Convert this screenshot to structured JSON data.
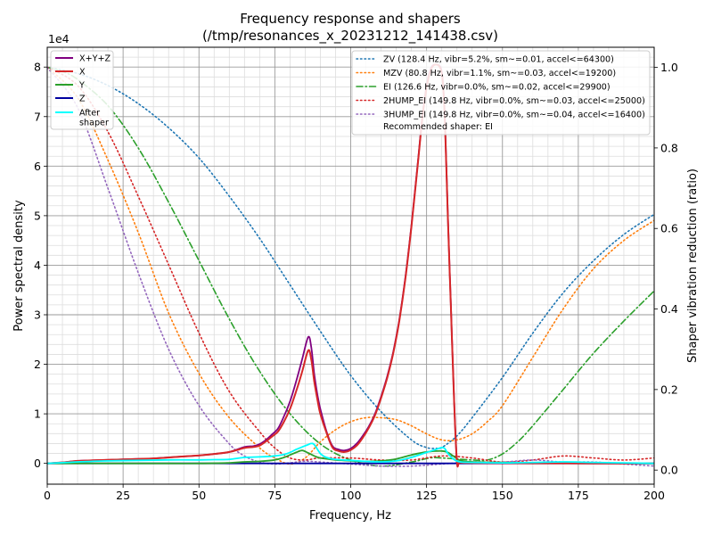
{
  "chart_data": {
    "type": "line",
    "title": "Frequency response and shapers",
    "subtitle": "(/tmp/resonances_x_20231212_141438.csv)",
    "xlabel": "Frequency, Hz",
    "ylabel": "Power spectral density",
    "y2label": "Shaper vibration reduction (ratio)",
    "xlim": [
      0,
      200
    ],
    "ylim": [
      -4200,
      84000
    ],
    "y2lim": [
      -0.035,
      1.05
    ],
    "y_offset_label": "1e4",
    "grid": true,
    "x_ticks": [
      0,
      25,
      50,
      75,
      100,
      125,
      150,
      175,
      200
    ],
    "y_ticks": [
      0,
      10000,
      20000,
      30000,
      40000,
      50000,
      60000,
      70000,
      80000
    ],
    "y_tick_labels": [
      "0",
      "1",
      "2",
      "3",
      "4",
      "5",
      "6",
      "7",
      "8"
    ],
    "y2_ticks": [
      0.0,
      0.2,
      0.4,
      0.6,
      0.8,
      1.0
    ],
    "y2_tick_labels": [
      "0.0",
      "0.2",
      "0.4",
      "0.6",
      "0.8",
      "1.0"
    ],
    "legend_left_position": "top-left",
    "legend_right_position": "top-right",
    "recommended_label": "Recommended shaper: EI",
    "psd_series": [
      {
        "name": "X+Y+Z",
        "label": "X+Y+Z",
        "color": "#800080",
        "x": [
          0,
          5,
          10,
          15,
          20,
          25,
          30,
          35,
          40,
          45,
          50,
          55,
          60,
          65,
          68,
          70,
          72,
          74,
          76,
          78,
          80,
          82,
          84,
          86,
          87,
          88,
          89,
          90,
          92,
          94,
          96,
          98,
          100,
          102,
          104,
          106,
          108,
          110,
          112,
          114,
          116,
          118,
          120,
          122,
          124,
          126,
          128,
          130,
          131,
          132,
          133,
          134,
          135,
          136,
          140,
          150,
          160,
          170,
          180,
          190,
          200
        ],
        "y": [
          0,
          200,
          500,
          600,
          700,
          800,
          900,
          1000,
          1200,
          1400,
          1600,
          1900,
          2300,
          3300,
          3500,
          3900,
          4700,
          5800,
          7000,
          9500,
          12500,
          16500,
          21000,
          25500,
          23500,
          18000,
          14000,
          11000,
          6500,
          3500,
          2800,
          2600,
          3000,
          4000,
          5600,
          7500,
          10000,
          13500,
          17500,
          22500,
          29000,
          37500,
          48000,
          60000,
          72000,
          79000,
          80500,
          79000,
          70000,
          50000,
          32000,
          14000,
          500,
          200,
          100,
          50,
          30,
          20,
          0,
          0,
          0
        ]
      },
      {
        "name": "X",
        "label": "X",
        "color": "#d62728",
        "x": [
          0,
          5,
          10,
          15,
          20,
          25,
          30,
          35,
          40,
          45,
          50,
          55,
          60,
          65,
          68,
          70,
          72,
          74,
          76,
          78,
          80,
          82,
          84,
          86,
          87,
          88,
          89,
          90,
          92,
          94,
          96,
          98,
          100,
          102,
          104,
          106,
          108,
          110,
          112,
          114,
          116,
          118,
          120,
          122,
          124,
          126,
          128,
          130,
          131,
          132,
          133,
          134,
          135,
          136,
          140,
          150,
          160,
          170,
          180,
          190,
          200
        ],
        "y": [
          0,
          200,
          500,
          600,
          700,
          800,
          900,
          1000,
          1200,
          1400,
          1600,
          1900,
          2300,
          3100,
          3300,
          3600,
          4400,
          5400,
          6400,
          8400,
          11000,
          14500,
          18500,
          22800,
          21000,
          16500,
          13000,
          10000,
          6200,
          3200,
          2500,
          2300,
          2700,
          3600,
          5200,
          7200,
          9700,
          13200,
          17200,
          22200,
          28700,
          37200,
          47700,
          59700,
          71700,
          78700,
          80500,
          78700,
          69700,
          49700,
          31700,
          13700,
          400,
          150,
          80,
          40,
          20,
          10,
          0,
          0,
          0
        ]
      },
      {
        "name": "Y",
        "label": "Y",
        "color": "#2ca02c",
        "x": [
          0,
          10,
          20,
          30,
          40,
          50,
          60,
          65,
          70,
          75,
          78,
          80,
          82,
          84,
          86,
          88,
          90,
          95,
          100,
          105,
          110,
          115,
          120,
          125,
          130,
          132,
          134,
          136,
          140,
          150,
          160,
          170,
          180,
          200
        ],
        "y": [
          0,
          0,
          0,
          0,
          0,
          0,
          100,
          300,
          400,
          700,
          1200,
          1700,
          2200,
          2600,
          2100,
          1500,
          1100,
          700,
          500,
          400,
          500,
          900,
          1700,
          2300,
          2500,
          2200,
          1400,
          600,
          300,
          150,
          80,
          40,
          20,
          0
        ]
      },
      {
        "name": "Z",
        "label": "Z",
        "color": "#0000a0",
        "x": [
          0,
          200
        ],
        "y": [
          0,
          0
        ]
      },
      {
        "name": "After shaper",
        "label": "After\nshaper",
        "color": "#00ffff",
        "x": [
          0,
          10,
          20,
          30,
          40,
          50,
          55,
          60,
          65,
          70,
          75,
          78,
          80,
          82,
          84,
          86,
          87,
          88,
          90,
          92,
          95,
          100,
          105,
          110,
          115,
          120,
          125,
          128,
          130,
          131,
          132,
          134,
          136,
          140,
          150,
          160,
          170,
          180,
          190,
          200
        ],
        "y": [
          0,
          300,
          500,
          600,
          700,
          700,
          750,
          800,
          1200,
          1300,
          1500,
          1800,
          2200,
          2800,
          3300,
          3800,
          4000,
          3800,
          2000,
          1200,
          800,
          600,
          400,
          300,
          500,
          1200,
          2200,
          2800,
          3200,
          3000,
          2000,
          800,
          300,
          200,
          100,
          200,
          300,
          200,
          100,
          0
        ]
      }
    ],
    "shaper_series": [
      {
        "name": "ZV",
        "label": "ZV (128.4 Hz, vibr=5.2%, sm~=0.01, accel<=64300)",
        "color": "#1f77b4",
        "dash": "1.5 3",
        "x": [
          0,
          10,
          20,
          30,
          40,
          50,
          60,
          70,
          80,
          90,
          100,
          110,
          120,
          125,
          128,
          130,
          135,
          140,
          150,
          160,
          170,
          180,
          190,
          200
        ],
        "y": [
          1.0,
          0.985,
          0.955,
          0.91,
          0.85,
          0.775,
          0.68,
          0.575,
          0.46,
          0.345,
          0.235,
          0.145,
          0.075,
          0.056,
          0.054,
          0.056,
          0.085,
          0.13,
          0.23,
          0.34,
          0.44,
          0.52,
          0.585,
          0.635
        ]
      },
      {
        "name": "MZV",
        "label": "MZV (80.8 Hz, vibr=1.1%, sm~=0.03, accel<=19200)",
        "color": "#ff7f0e",
        "dash": "1.5 3",
        "x": [
          0,
          10,
          20,
          30,
          40,
          50,
          60,
          70,
          75,
          80,
          85,
          90,
          95,
          100,
          105,
          110,
          115,
          120,
          125,
          130,
          135,
          140,
          145,
          150,
          160,
          170,
          180,
          190,
          200
        ],
        "y": [
          1.0,
          0.925,
          0.77,
          0.59,
          0.39,
          0.24,
          0.13,
          0.055,
          0.03,
          0.015,
          0.03,
          0.07,
          0.1,
          0.12,
          0.13,
          0.13,
          0.125,
          0.11,
          0.09,
          0.075,
          0.075,
          0.09,
          0.12,
          0.16,
          0.28,
          0.4,
          0.5,
          0.57,
          0.62
        ]
      },
      {
        "name": "EI",
        "label": "EI (126.6 Hz, vibr=0.0%, sm~=0.02, accel<=29900)",
        "color": "#2ca02c",
        "dash": "7 3 1.5 3",
        "x": [
          0,
          5,
          10,
          20,
          30,
          40,
          50,
          60,
          70,
          80,
          90,
          100,
          110,
          120,
          126,
          130,
          140,
          145,
          150,
          155,
          160,
          170,
          180,
          190,
          200
        ],
        "y": [
          1.0,
          0.99,
          0.97,
          0.905,
          0.8,
          0.665,
          0.52,
          0.375,
          0.245,
          0.14,
          0.065,
          0.025,
          0.01,
          0.02,
          0.03,
          0.03,
          0.025,
          0.025,
          0.04,
          0.07,
          0.11,
          0.2,
          0.29,
          0.37,
          0.445
        ]
      },
      {
        "name": "2HUMP_EI",
        "label": "2HUMP_EI (149.8 Hz, vibr=0.0%, sm~=0.03, accel<=25000)",
        "color": "#d62728",
        "dash": "1.5 3",
        "x": [
          0,
          10,
          20,
          30,
          40,
          50,
          60,
          70,
          75,
          80,
          85,
          90,
          100,
          110,
          120,
          130,
          140,
          150,
          160,
          170,
          180,
          190,
          200
        ],
        "y": [
          1.0,
          0.955,
          0.84,
          0.68,
          0.51,
          0.34,
          0.195,
          0.095,
          0.055,
          0.03,
          0.025,
          0.03,
          0.03,
          0.025,
          0.025,
          0.035,
          0.03,
          0.02,
          0.025,
          0.035,
          0.03,
          0.025,
          0.03
        ]
      },
      {
        "name": "3HUMP_EI",
        "label": "3HUMP_EI (149.8 Hz, vibr=0.0%, sm~=0.04, accel<=16400)",
        "color": "#9467bd",
        "dash": "1.5 3",
        "x": [
          0,
          10,
          20,
          30,
          40,
          50,
          60,
          65,
          70,
          75,
          80,
          85,
          90,
          100,
          110,
          120,
          130,
          140,
          150,
          160,
          170,
          180,
          190,
          200
        ],
        "y": [
          1.0,
          0.9,
          0.7,
          0.49,
          0.3,
          0.16,
          0.065,
          0.035,
          0.02,
          0.015,
          0.018,
          0.022,
          0.02,
          0.015,
          0.01,
          0.01,
          0.015,
          0.02,
          0.02,
          0.025,
          0.02,
          0.02,
          0.015,
          0.01
        ]
      }
    ]
  }
}
